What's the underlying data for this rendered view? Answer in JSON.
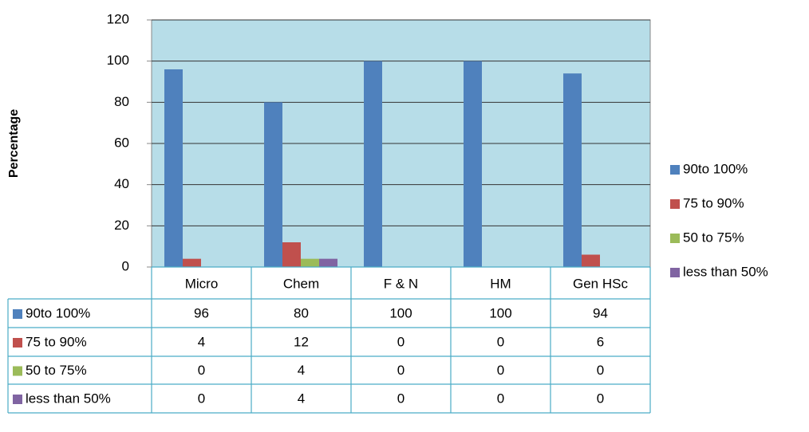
{
  "chart_data": {
    "type": "bar",
    "y_label": "Percentage",
    "categories": [
      "Micro",
      "Chem",
      "F & N",
      "HM",
      "Gen HSc"
    ],
    "series": [
      {
        "name": "90to 100%",
        "color": "#4f81bd",
        "values": [
          96,
          80,
          100,
          100,
          94
        ]
      },
      {
        "name": "75 to 90%",
        "color": "#c0504d",
        "values": [
          4,
          12,
          0,
          0,
          6
        ]
      },
      {
        "name": "50 to 75%",
        "color": "#9bbb59",
        "values": [
          0,
          4,
          0,
          0,
          0
        ]
      },
      {
        "name": "less than 50%",
        "color": "#8064a2",
        "values": [
          0,
          4,
          0,
          0,
          0
        ]
      }
    ],
    "ylim": [
      0,
      120
    ],
    "yticks": [
      0,
      20,
      40,
      60,
      80,
      100,
      120
    ],
    "grid": true,
    "plot_background": "#b7dde8",
    "legend": "right",
    "data_table": true
  }
}
